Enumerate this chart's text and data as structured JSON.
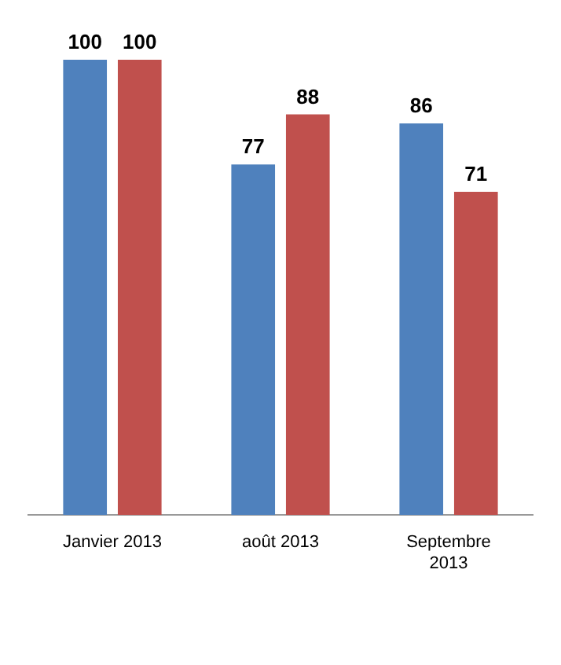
{
  "chart_data": {
    "type": "bar",
    "categories": [
      "Janvier 2013",
      "août 2013",
      "Septembre 2013"
    ],
    "series": [
      {
        "color": "#4f81bd",
        "values": [
          100,
          77,
          86
        ]
      },
      {
        "color": "#c0504d",
        "values": [
          100,
          88,
          71
        ]
      }
    ],
    "data_labels": true,
    "legend": false,
    "grid": false
  }
}
